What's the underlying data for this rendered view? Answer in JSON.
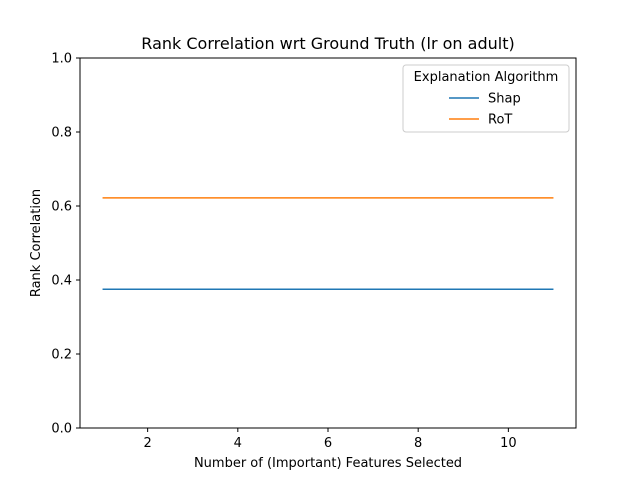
{
  "chart_data": {
    "type": "line",
    "title": "Rank Correlation wrt Ground Truth (lr on adult)",
    "xlabel": "Number of (Important) Features Selected",
    "ylabel": "Rank Correlation",
    "xlim": [
      0.5,
      11.5
    ],
    "ylim": [
      0.0,
      1.0
    ],
    "xticks": [
      2,
      4,
      6,
      8,
      10
    ],
    "yticks": [
      0.0,
      0.2,
      0.4,
      0.6,
      0.8,
      1.0
    ],
    "xtick_labels": [
      "2",
      "4",
      "6",
      "8",
      "10"
    ],
    "ytick_labels": [
      "0.0",
      "0.2",
      "0.4",
      "0.6",
      "0.8",
      "1.0"
    ],
    "grid": false,
    "legend": {
      "title": "Explanation Algorithm",
      "placement": "top-right"
    },
    "x": [
      1,
      2,
      3,
      4,
      5,
      6,
      7,
      8,
      9,
      10,
      11
    ],
    "series": [
      {
        "name": "Shap",
        "color": "#1f77b4",
        "values": [
          0.375,
          0.375,
          0.375,
          0.375,
          0.375,
          0.375,
          0.375,
          0.375,
          0.375,
          0.375,
          0.375
        ]
      },
      {
        "name": "RoT",
        "color": "#ff7f0e",
        "values": [
          0.622,
          0.622,
          0.622,
          0.622,
          0.622,
          0.622,
          0.622,
          0.622,
          0.622,
          0.622,
          0.622
        ]
      }
    ]
  }
}
